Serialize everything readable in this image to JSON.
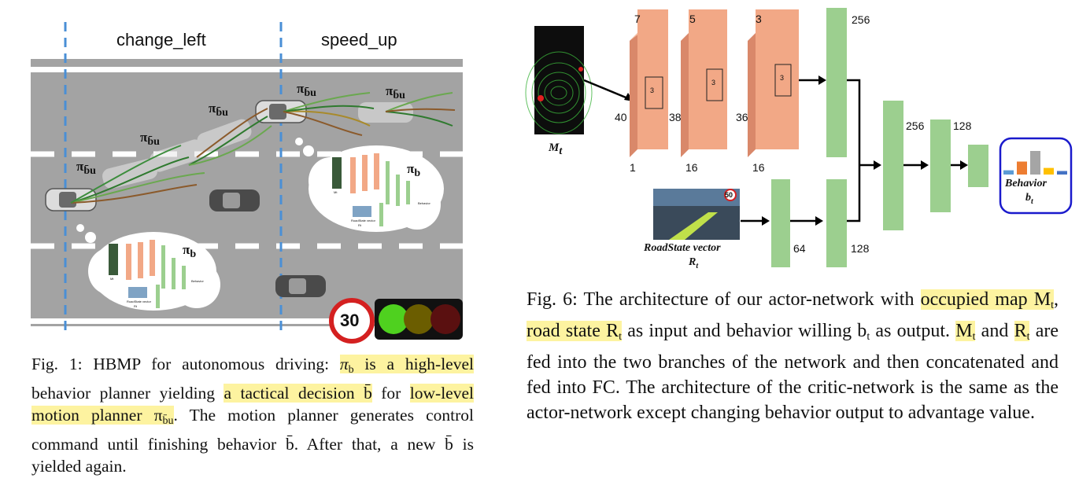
{
  "fig1": {
    "section_left": "change_left",
    "section_right": "speed_up",
    "policy_low": "π",
    "policy_low_sub": "b̄u",
    "policy_high": "π",
    "policy_high_sub": "b",
    "speed_sign": "30",
    "thumb_input_label": "Mt",
    "thumb_road_label": "RoadState vector",
    "thumb_road_sub": "Rt",
    "thumb_output_label": "Behavior",
    "caption": {
      "p1": "Fig. 1: HBMP for autonomous driving: ",
      "h1": "π",
      "h1_sub": "b",
      "h1_rest": " is a high-level",
      "p2": "behavior planner yielding ",
      "h2": "a tactical decision b̄",
      "p3": " for ",
      "h3": "low-level motion planner π",
      "h3_sub": "b̄u",
      "p4": ". The motion planner generates control command until finishing behavior b̄. After that, a new b̄ is yielded again."
    }
  },
  "fig6": {
    "input_map_label": "M",
    "input_map_sub": "t",
    "road_label": "RoadState vector",
    "road_sub_label": "R",
    "road_sub_sub": "t",
    "road_sign": "50",
    "behavior_label": "Behavior",
    "behavior_sub": "b",
    "behavior_sub_sub": "t",
    "conv_channels": [
      "7",
      "5",
      "3"
    ],
    "conv_left_dims": [
      "40",
      "38",
      "36"
    ],
    "conv_bottom_dims": [
      "1",
      "16",
      "16"
    ],
    "kernel_label": "3",
    "fc_sizes": [
      "256",
      "256",
      "128"
    ],
    "road_fc_sizes": [
      "64",
      "128"
    ],
    "caption": {
      "p1": "Fig. 6: The architecture of our actor-network with ",
      "h1": "occupied map M",
      "h1_sub": "t",
      "p2": ", ",
      "h2": "road state R",
      "h2_sub": "t",
      "p3": " as input and behavior willing b",
      "p3_sub": "t",
      "p4": " as output. ",
      "h3": "M",
      "h3_sub": "t",
      "p5": " and ",
      "h4": "R",
      "h4_sub": "t",
      "p6": " are fed into the two branches of the network and then concatenated and fed into FC. The architecture of the critic-network is the same as the actor-network except changing behavior output to advantage value."
    }
  },
  "colors": {
    "road": "#a3a3a3",
    "lane": "#ffffff",
    "divider": "#4a8fd6",
    "conv": "#f2a886",
    "fc": "#9ccf8f",
    "highlight": "#fdf3a0",
    "behavior_border": "#1a1acc"
  },
  "output_bars": [
    0.18,
    0.55,
    1.0,
    0.28,
    0.15
  ],
  "output_bar_colors": [
    "#5b9bd5",
    "#ed7d31",
    "#a5a5a5",
    "#ffc000",
    "#4472c4"
  ]
}
